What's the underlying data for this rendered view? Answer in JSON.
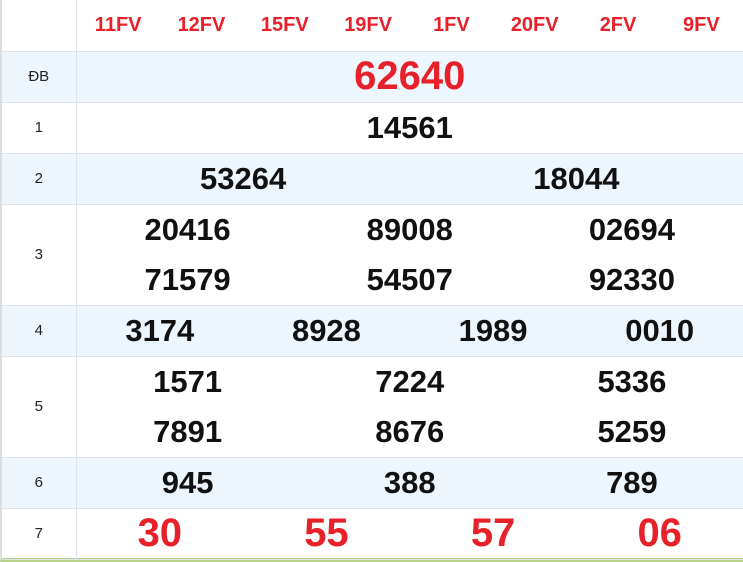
{
  "codes": [
    "11FV",
    "12FV",
    "15FV",
    "19FV",
    "1FV",
    "20FV",
    "2FV",
    "9FV"
  ],
  "prizes": [
    {
      "label": "ĐB",
      "rows": [
        [
          "62640"
        ]
      ]
    },
    {
      "label": "1",
      "rows": [
        [
          "14561"
        ]
      ]
    },
    {
      "label": "2",
      "rows": [
        [
          "53264",
          "18044"
        ]
      ]
    },
    {
      "label": "3",
      "rows": [
        [
          "20416",
          "89008",
          "02694"
        ],
        [
          "71579",
          "54507",
          "92330"
        ]
      ]
    },
    {
      "label": "4",
      "rows": [
        [
          "3174",
          "8928",
          "1989",
          "0010"
        ]
      ]
    },
    {
      "label": "5",
      "rows": [
        [
          "1571",
          "7224",
          "5336"
        ],
        [
          "7891",
          "8676",
          "5259"
        ]
      ]
    },
    {
      "label": "6",
      "rows": [
        [
          "945",
          "388",
          "789"
        ]
      ]
    },
    {
      "label": "7",
      "rows": [
        [
          "30",
          "55",
          "57",
          "06"
        ]
      ]
    }
  ],
  "colors": {
    "accent_red": "#e8202a",
    "alt_row": "#edf5fd",
    "bottom_bar": "#b9d28a"
  }
}
